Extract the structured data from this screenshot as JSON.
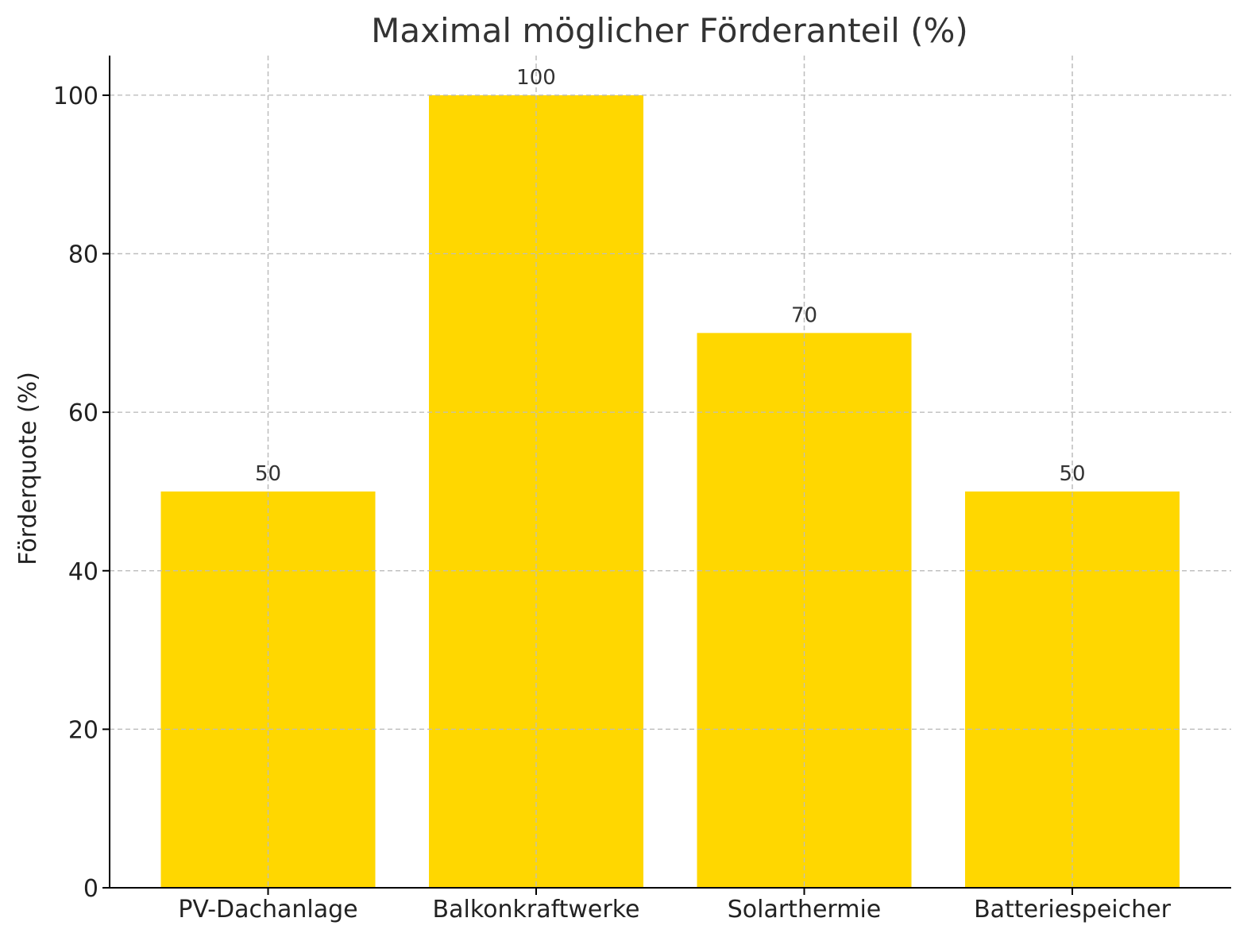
{
  "chart_data": {
    "type": "bar",
    "title": "Maximal möglicher Förderanteil (%)",
    "xlabel": "",
    "ylabel": "Förderquote (%)",
    "categories": [
      "PV-Dachanlage",
      "Balkonkraftwerke",
      "Solarthermie",
      "Batteriespeicher"
    ],
    "values": [
      50,
      100,
      70,
      50
    ],
    "data_labels": [
      "50",
      "100",
      "70",
      "50"
    ],
    "yticks": [
      0,
      20,
      40,
      60,
      80,
      100
    ],
    "ylim": [
      0,
      105
    ],
    "grid": true,
    "bar_color": "#FFD700"
  }
}
